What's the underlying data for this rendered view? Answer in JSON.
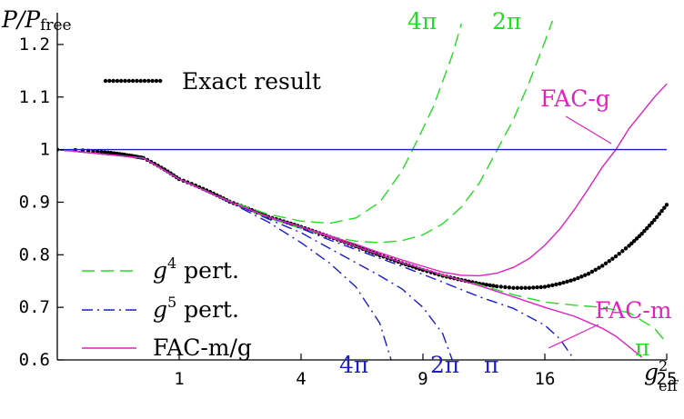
{
  "chart_data": {
    "type": "line",
    "title": "",
    "ylabel_main": "P/P",
    "ylabel_sub": "free",
    "xlabel_main": "g",
    "xlabel_sup": "2",
    "xlabel_sub": "eff",
    "x_scale": "sqrt",
    "xlim": [
      0,
      25
    ],
    "ylim": [
      0.6,
      1.25
    ],
    "x_ticks": [
      1,
      4,
      9,
      16,
      25
    ],
    "x_tick_labels": [
      "1",
      "4",
      "9",
      "16",
      "25"
    ],
    "y_ticks": [
      0.6,
      0.7,
      0.8,
      0.9,
      1.0,
      1.1,
      1.2
    ],
    "y_tick_labels": [
      "0.6",
      "0.7",
      "0.8",
      "0.9",
      "1",
      "1.1",
      "1.2"
    ],
    "grid": false,
    "legend": [
      {
        "label": "Exact result",
        "style": "dots",
        "color": "#000000"
      },
      {
        "label_main": "g",
        "label_sup": "4",
        "label_rest": " pert.",
        "style": "dashed",
        "color": "#22dd22"
      },
      {
        "label_main": "g",
        "label_sup": "5",
        "label_rest": " pert.",
        "style": "dashdot",
        "color": "#1c1ccc"
      },
      {
        "label": "FAC-m/g",
        "style": "solid",
        "color": "#e020c0"
      }
    ],
    "annotations": {
      "g4_4pi": "4π",
      "g4_2pi": "2π",
      "g4_pi": "π",
      "g5_4pi": "4π",
      "g5_2pi": "2π",
      "g5_pi": "π",
      "fac_g": "FAC-g",
      "fac_m": "FAC-m"
    },
    "series": [
      {
        "name": "Exact result",
        "style": "dots",
        "color": "#000000",
        "x": [
          0,
          0.5,
          1,
          2,
          3,
          4,
          5,
          6,
          7,
          8,
          9,
          10,
          11,
          12,
          13,
          14,
          15,
          16,
          17,
          18,
          19,
          20,
          21,
          22,
          23,
          24,
          25
        ],
        "y": [
          1.0,
          0.984,
          0.944,
          0.901,
          0.872,
          0.853,
          0.834,
          0.816,
          0.799,
          0.784,
          0.771,
          0.76,
          0.752,
          0.745,
          0.74,
          0.737,
          0.737,
          0.739,
          0.745,
          0.753,
          0.764,
          0.779,
          0.797,
          0.817,
          0.84,
          0.866,
          0.895
        ]
      },
      {
        "name": "g4 pert. 4π",
        "style": "dashed",
        "color": "#22dd22",
        "x": [
          0,
          0.5,
          1,
          2,
          3,
          4,
          5,
          6,
          7,
          8,
          8.5,
          9,
          9.5,
          10,
          10.5,
          11
        ],
        "y": [
          1.0,
          0.984,
          0.944,
          0.902,
          0.877,
          0.864,
          0.86,
          0.87,
          0.9,
          0.96,
          1.0,
          1.04,
          1.08,
          1.13,
          1.18,
          1.24
        ]
      },
      {
        "name": "g4 pert. 2π",
        "style": "dashed",
        "color": "#22dd22",
        "x": [
          0,
          0.5,
          1,
          2,
          3,
          4,
          5,
          6,
          7,
          8,
          9,
          10,
          11,
          12,
          13,
          14,
          15,
          16,
          16.5
        ],
        "y": [
          1.0,
          0.984,
          0.944,
          0.901,
          0.87,
          0.85,
          0.835,
          0.826,
          0.823,
          0.827,
          0.838,
          0.859,
          0.891,
          0.937,
          0.998,
          1.057,
          1.129,
          1.205,
          1.245
        ]
      },
      {
        "name": "g4 pert. π",
        "style": "dashed",
        "color": "#22dd22",
        "x": [
          0,
          0.5,
          1,
          2,
          3,
          4,
          6,
          8,
          10,
          12,
          14,
          16,
          18,
          20,
          22,
          24,
          25
        ],
        "y": [
          1.0,
          0.984,
          0.944,
          0.901,
          0.872,
          0.853,
          0.816,
          0.785,
          0.761,
          0.743,
          0.724,
          0.71,
          0.704,
          0.7,
          0.69,
          0.66,
          0.632
        ]
      },
      {
        "name": "g5 pert. 4π",
        "style": "dashdot",
        "color": "#1c1ccc",
        "x": [
          0,
          0.5,
          1,
          2,
          3,
          4,
          5,
          6,
          7,
          7.5
        ],
        "y": [
          1.0,
          0.984,
          0.944,
          0.9,
          0.862,
          0.823,
          0.784,
          0.739,
          0.67,
          0.6
        ]
      },
      {
        "name": "g5 pert. 2π",
        "style": "dashdot",
        "color": "#1c1ccc",
        "x": [
          0,
          0.5,
          1,
          2,
          3,
          4,
          5,
          6,
          7,
          8,
          9,
          10,
          10.5
        ],
        "y": [
          1.0,
          0.984,
          0.944,
          0.901,
          0.868,
          0.842,
          0.812,
          0.785,
          0.76,
          0.735,
          0.7,
          0.65,
          0.6
        ]
      },
      {
        "name": "g5 pert. π",
        "style": "dashdot",
        "color": "#1c1ccc",
        "x": [
          0,
          0.5,
          1,
          2,
          3,
          4,
          5,
          6,
          8,
          10,
          12,
          14,
          16,
          17,
          18
        ],
        "y": [
          1.0,
          0.984,
          0.944,
          0.901,
          0.872,
          0.85,
          0.828,
          0.81,
          0.778,
          0.748,
          0.72,
          0.698,
          0.666,
          0.64,
          0.6
        ]
      },
      {
        "name": "FAC-g",
        "style": "solid",
        "color": "#e020c0",
        "x": [
          0,
          0.5,
          1,
          2,
          3,
          4,
          5,
          6,
          7,
          8,
          9,
          10,
          11,
          12,
          13,
          14,
          15,
          16,
          17,
          18,
          19,
          20,
          21,
          22,
          23,
          24,
          25
        ],
        "y": [
          1.0,
          0.984,
          0.944,
          0.901,
          0.872,
          0.853,
          0.836,
          0.82,
          0.804,
          0.79,
          0.778,
          0.767,
          0.761,
          0.76,
          0.765,
          0.776,
          0.793,
          0.818,
          0.849,
          0.886,
          0.926,
          0.967,
          1.0,
          1.04,
          1.07,
          1.1,
          1.125
        ]
      },
      {
        "name": "FAC-m",
        "style": "solid",
        "color": "#e020c0",
        "x": [
          0,
          0.5,
          1,
          2,
          3,
          4,
          6,
          8,
          10,
          12,
          14,
          16,
          18,
          20,
          21,
          22,
          23
        ],
        "y": [
          1.0,
          0.984,
          0.944,
          0.901,
          0.872,
          0.853,
          0.816,
          0.785,
          0.762,
          0.741,
          0.72,
          0.7,
          0.683,
          0.66,
          0.645,
          0.625,
          0.605
        ]
      },
      {
        "name": "Free",
        "style": "solid",
        "color": "#1c1ccc",
        "x": [
          0,
          25
        ],
        "y": [
          1.0,
          1.0
        ]
      }
    ]
  }
}
